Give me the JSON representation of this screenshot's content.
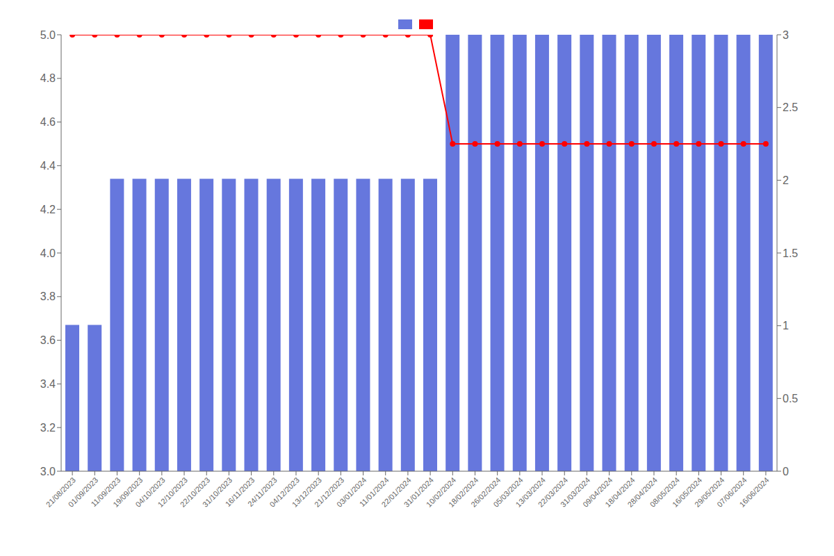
{
  "chart_data": {
    "type": "bar",
    "categories": [
      "21/08/2023",
      "01/09/2023",
      "11/09/2023",
      "19/09/2023",
      "04/10/2023",
      "12/10/2023",
      "22/10/2023",
      "31/10/2023",
      "16/11/2023",
      "24/11/2023",
      "04/12/2023",
      "13/12/2023",
      "21/12/2023",
      "03/01/2024",
      "11/01/2024",
      "22/01/2024",
      "31/01/2024",
      "10/02/2024",
      "18/02/2024",
      "26/02/2024",
      "05/03/2024",
      "13/03/2024",
      "22/03/2024",
      "31/03/2024",
      "09/04/2024",
      "18/04/2024",
      "28/04/2024",
      "08/05/2024",
      "16/05/2024",
      "29/05/2024",
      "07/06/2024",
      "16/06/2024"
    ],
    "series": [
      {
        "type": "bar",
        "color": "#6677DD",
        "values": [
          3.67,
          3.67,
          4.34,
          4.34,
          4.34,
          4.34,
          4.34,
          4.34,
          4.34,
          4.34,
          4.34,
          4.34,
          4.34,
          4.34,
          4.34,
          4.34,
          4.34,
          5.0,
          5.0,
          5.0,
          5.0,
          5.0,
          5.0,
          5.0,
          5.0,
          5.0,
          5.0,
          5.0,
          5.0,
          5.0,
          5.0,
          5.0
        ]
      },
      {
        "type": "line",
        "color": "#FF0000",
        "marker": "circle",
        "values": [
          5.0,
          5.0,
          5.0,
          5.0,
          5.0,
          5.0,
          5.0,
          5.0,
          5.0,
          5.0,
          5.0,
          5.0,
          5.0,
          5.0,
          5.0,
          5.0,
          5.0,
          4.5,
          4.5,
          4.5,
          4.5,
          4.5,
          4.5,
          4.5,
          4.5,
          4.5,
          4.5,
          4.5,
          4.5,
          4.5,
          4.5,
          4.5
        ]
      }
    ],
    "ylim": [
      3.0,
      5.0
    ],
    "yticks": [
      {
        "value": 3.0,
        "label": "3.0"
      },
      3.2,
      3.4,
      3.6,
      3.8,
      {
        "value": 4.0,
        "label": "4.0"
      },
      4.2,
      4.4,
      4.6,
      4.8,
      {
        "value": 5.0,
        "label": "5.0"
      }
    ],
    "y2lim": [
      0,
      3.0
    ],
    "y2ticks": [
      0,
      0.5,
      1,
      1.5,
      2,
      2.5,
      3
    ],
    "grid": false,
    "legend": "top"
  }
}
